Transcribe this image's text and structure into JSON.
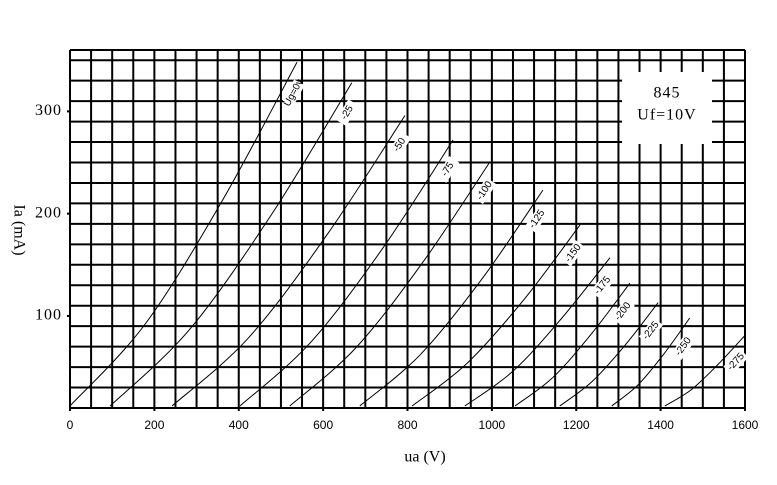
{
  "chart_data": {
    "type": "line",
    "x_label": "ua (V)",
    "y_label": "Ia (mA)",
    "box_title": "845",
    "box_subtitle": "Uf=10V",
    "xlim": [
      0,
      1600
    ],
    "xticks": [
      0,
      200,
      400,
      600,
      800,
      1000,
      1200,
      1400,
      1600
    ],
    "ylim": [
      10,
      360
    ],
    "yticks": [
      100,
      200,
      300
    ],
    "grid": true,
    "series": [
      {
        "name": "Ug=0v",
        "color": "#000000",
        "x": [
          0,
          178,
          360,
          538
        ],
        "values": [
          12,
          92,
          212,
          348
        ]
      },
      {
        "name": "-25",
        "color": "#000000",
        "x": [
          95,
          284,
          479,
          668
        ],
        "values": [
          12,
          87,
          200,
          328
        ]
      },
      {
        "name": "-50",
        "color": "#000000",
        "x": [
          242,
          424,
          612,
          794
        ],
        "values": [
          12,
          79,
          181,
          296
        ]
      },
      {
        "name": "-75",
        "color": "#000000",
        "x": [
          403,
          570,
          741,
          908
        ],
        "values": [
          12,
          74,
          166,
          272
        ]
      },
      {
        "name": "-100",
        "color": "#000000",
        "x": [
          521,
          678,
          839,
          996
        ],
        "values": [
          12,
          69,
          154,
          251
        ]
      },
      {
        "name": "-125",
        "color": "#000000",
        "x": [
          687,
          830,
          978,
          1121
        ],
        "values": [
          12,
          62,
          137,
          223
        ]
      },
      {
        "name": "-150",
        "color": "#000000",
        "x": [
          811,
          942,
          1078,
          1209
        ],
        "values": [
          12,
          54,
          117,
          189
        ]
      },
      {
        "name": "-175",
        "color": "#000000",
        "x": [
          936,
          1050,
          1166,
          1280
        ],
        "values": [
          12,
          46,
          98,
          157
        ]
      },
      {
        "name": "-200",
        "color": "#000000",
        "x": [
          1055,
          1145,
          1237,
          1327
        ],
        "values": [
          12,
          40,
          83,
          132
        ]
      },
      {
        "name": "-225",
        "color": "#000000",
        "x": [
          1161,
          1238,
          1317,
          1394
        ],
        "values": [
          12,
          36,
          72,
          113
        ]
      },
      {
        "name": "-250",
        "color": "#000000",
        "x": [
          1284,
          1345,
          1408,
          1469
        ],
        "values": [
          12,
          32,
          63,
          98
        ]
      },
      {
        "name": "-275",
        "color": "#000000",
        "x": [
          1410,
          1473,
          1537,
          1600
        ],
        "values": [
          12,
          28,
          53,
          81
        ]
      }
    ]
  }
}
